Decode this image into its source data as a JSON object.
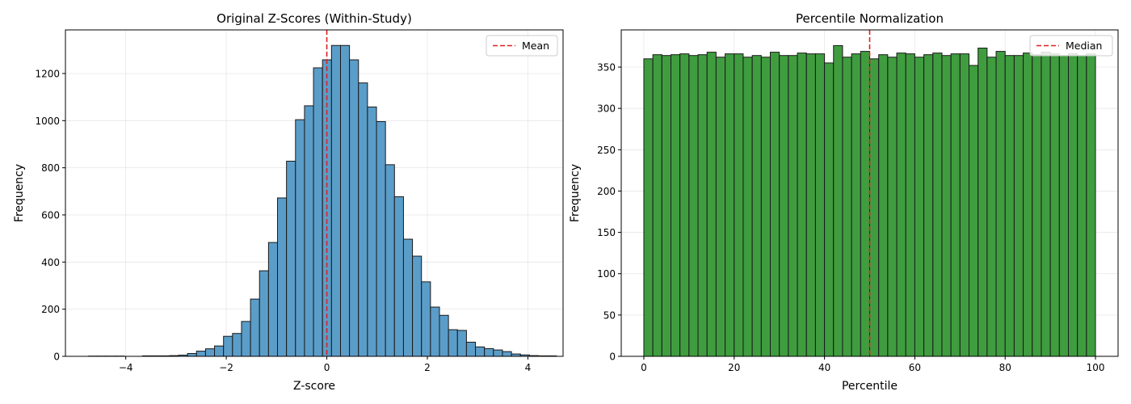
{
  "chart_data": [
    {
      "type": "bar",
      "title": "Original Z-Scores (Within-Study)",
      "xlabel": "Z-score",
      "ylabel": "Frequency",
      "xlim": [
        -5.2,
        4.7
      ],
      "ylim": [
        0,
        1385
      ],
      "xticks": [
        -4,
        -2,
        0,
        2,
        4
      ],
      "xtick_labels": [
        "−4",
        "−2",
        "0",
        "2",
        "4"
      ],
      "yticks": [
        0,
        200,
        400,
        600,
        800,
        1000,
        1200
      ],
      "ytick_labels": [
        "0",
        "200",
        "400",
        "600",
        "800",
        "1000",
        "1200"
      ],
      "grid": true,
      "bar_color": "#5b9dc9",
      "bins": {
        "start": -4.74,
        "width": 0.179,
        "values": [
          1,
          1,
          1,
          1,
          0,
          0,
          2,
          2,
          2,
          3,
          5,
          12,
          22,
          32,
          44,
          85,
          97,
          148,
          243,
          363,
          483,
          672,
          828,
          1004,
          1063,
          1224,
          1258,
          1319,
          1319,
          1258,
          1160,
          1058,
          996,
          813,
          677,
          497,
          425,
          316,
          209,
          174,
          113,
          110,
          60,
          40,
          33,
          27,
          20,
          10,
          6,
          3,
          2,
          2
        ]
      },
      "reference_line": {
        "x": 0,
        "label": "Mean",
        "color": "#e02020"
      },
      "legend": {
        "entries": [
          "Mean"
        ],
        "placement": "upper right"
      }
    },
    {
      "type": "bar",
      "title": "Percentile Normalization",
      "xlabel": "Percentile",
      "ylabel": "Frequency",
      "xlim": [
        -5,
        105
      ],
      "ylim": [
        0,
        395
      ],
      "xticks": [
        0,
        20,
        40,
        60,
        80,
        100
      ],
      "xtick_labels": [
        "0",
        "20",
        "40",
        "60",
        "80",
        "100"
      ],
      "yticks": [
        0,
        50,
        100,
        150,
        200,
        250,
        300,
        350
      ],
      "ytick_labels": [
        "0",
        "50",
        "100",
        "150",
        "200",
        "250",
        "300",
        "350"
      ],
      "grid": true,
      "bar_color": "#3f9d3f",
      "bins": {
        "start": 0,
        "width": 2,
        "values": [
          360,
          365,
          364,
          365,
          366,
          364,
          365,
          368,
          362,
          366,
          366,
          362,
          364,
          362,
          368,
          364,
          364,
          367,
          366,
          366,
          355,
          376,
          362,
          366,
          369,
          360,
          365,
          362,
          367,
          366,
          362,
          365,
          367,
          364,
          366,
          366,
          352,
          373,
          362,
          369,
          364,
          364,
          367,
          365,
          368,
          366,
          364,
          366,
          364,
          366
        ]
      },
      "reference_line": {
        "x": 50,
        "label": "Median",
        "color": "#e02020"
      },
      "legend": {
        "entries": [
          "Median"
        ],
        "placement": "upper right"
      }
    }
  ]
}
